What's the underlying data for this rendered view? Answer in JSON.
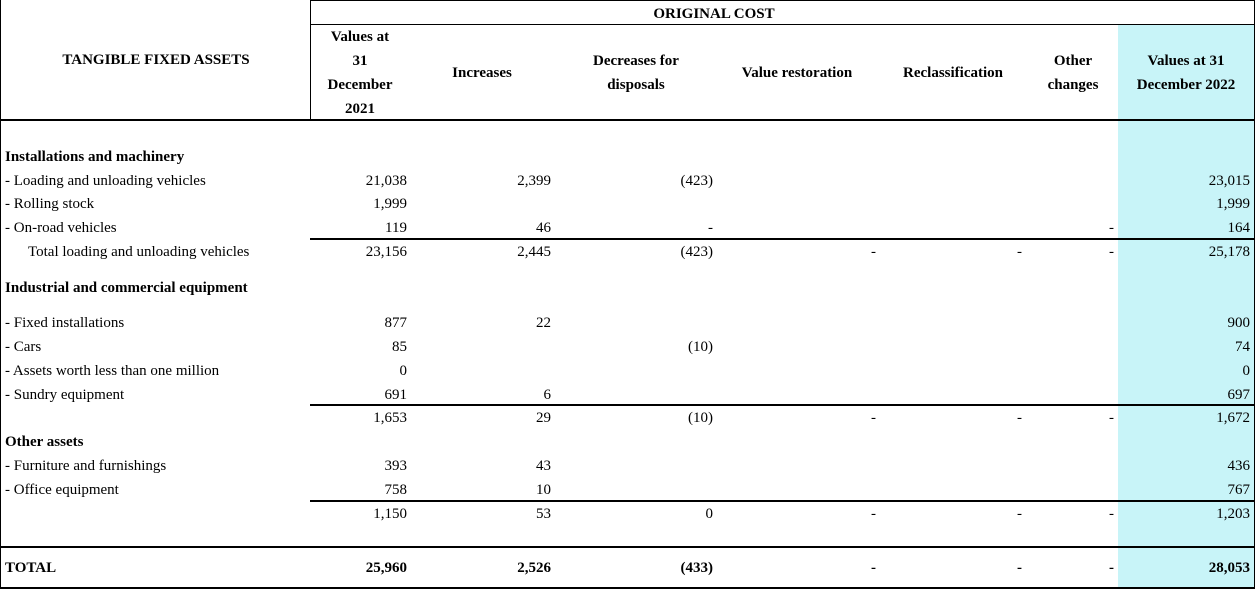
{
  "header": {
    "row_label": "TANGIBLE FIXED ASSETS",
    "group": "ORIGINAL COST",
    "columns": [
      [
        "Values at",
        "31",
        "December",
        "2021"
      ],
      [
        "Increases"
      ],
      [
        "Decreases for",
        "disposals"
      ],
      [
        "Value restoration"
      ],
      [
        "Reclassification"
      ],
      [
        "Other",
        "changes"
      ],
      [
        "Values at 31",
        "December 2022"
      ]
    ]
  },
  "sections": [
    {
      "title": "Installations and machinery",
      "items": [
        {
          "label": "- Loading and unloading vehicles",
          "cells": [
            "21,038",
            "2,399",
            "(423)",
            null,
            null,
            null,
            "23,015"
          ]
        },
        {
          "label": "- Rolling stock",
          "cells": [
            "1,999",
            null,
            null,
            null,
            null,
            null,
            "1,999"
          ]
        },
        {
          "label": "- On-road vehicles",
          "cells": [
            "119",
            "46",
            "-",
            null,
            null,
            "-",
            "164"
          ]
        }
      ],
      "subtotal": {
        "label": "Total loading and unloading vehicles",
        "cells": [
          "23,156",
          "2,445",
          "(423)",
          "-",
          "-",
          "-",
          "25,178"
        ]
      }
    },
    {
      "title": "Industrial and commercial equipment",
      "items": [
        {
          "label": "- Fixed installations",
          "cells": [
            "877",
            "22",
            null,
            null,
            null,
            null,
            "900"
          ]
        },
        {
          "label": "- Cars",
          "cells": [
            "85",
            null,
            "(10)",
            null,
            null,
            null,
            "74"
          ]
        },
        {
          "label": "- Assets worth less than one million",
          "cells": [
            "0",
            null,
            null,
            null,
            null,
            null,
            "0"
          ]
        },
        {
          "label": "- Sundry equipment",
          "cells": [
            "691",
            "6",
            null,
            null,
            null,
            null,
            "697"
          ]
        }
      ],
      "subtotal": {
        "cells": [
          "1,653",
          "29",
          "(10)",
          "-",
          "-",
          "-",
          "1,672"
        ]
      }
    },
    {
      "title": "Other assets",
      "items": [
        {
          "label": "- Furniture and furnishings",
          "cells": [
            "393",
            "43",
            null,
            null,
            null,
            null,
            "436"
          ]
        },
        {
          "label": "- Office equipment",
          "cells": [
            "758",
            "10",
            null,
            null,
            null,
            null,
            "767"
          ]
        }
      ],
      "subtotal": {
        "cells": [
          "1,150",
          "53",
          "0",
          "-",
          "-",
          "-",
          "1,203"
        ]
      }
    }
  ],
  "total": {
    "label": "TOTAL",
    "cells": [
      "25,960",
      "2,526",
      "(433)",
      "-",
      "-",
      "-",
      "28,053"
    ]
  }
}
